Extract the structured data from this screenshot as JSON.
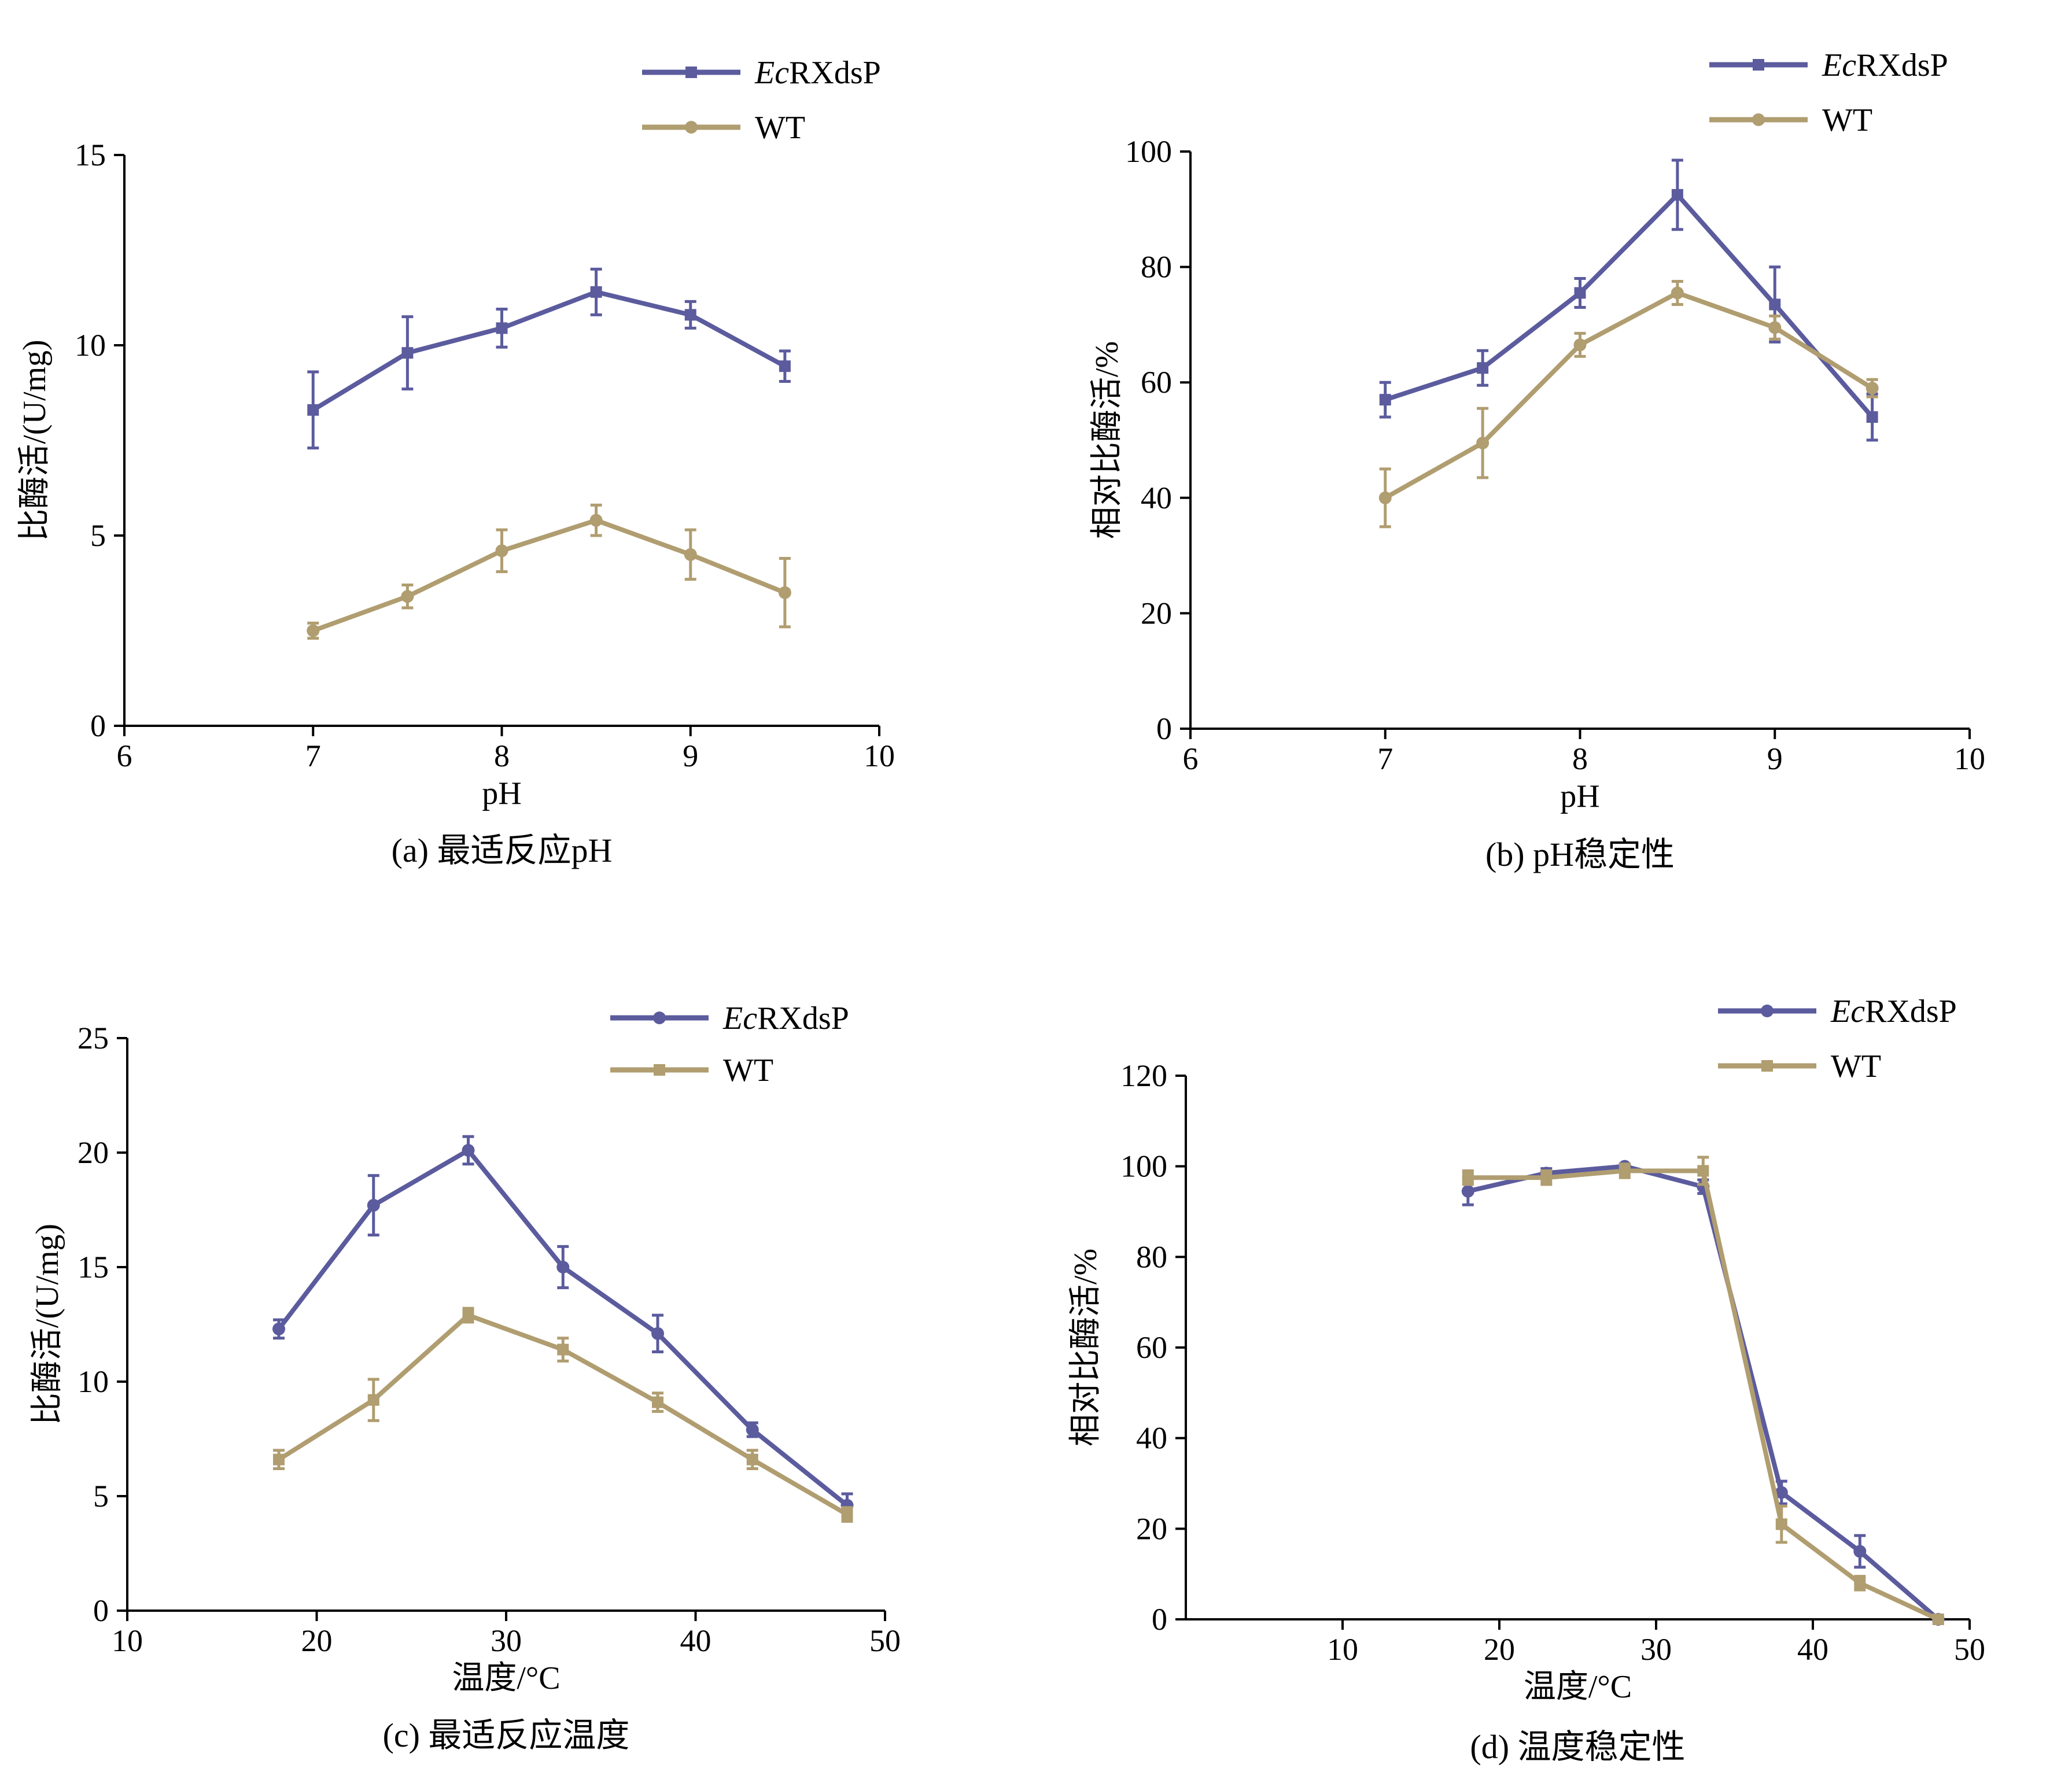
{
  "colors": {
    "EcRXdsP": "#5b5b9e",
    "WT": "#b09d70"
  },
  "chart_data": [
    {
      "type": "line",
      "caption": "(a) 最适反应pH",
      "xlabel": "pH",
      "ylabel": "比酶活/(U/mg)",
      "xlim": [
        6,
        10
      ],
      "ylim": [
        0,
        15
      ],
      "xticks": [
        6,
        7,
        8,
        9,
        10
      ],
      "yticks": [
        0,
        5,
        10,
        15
      ],
      "legend": "top-right",
      "grid": false,
      "series": [
        {
          "name_italic": "Ec",
          "name_rest": "RXdsP",
          "color": "#5b5b9e",
          "marker": "square",
          "x": [
            7,
            7.5,
            8,
            8.5,
            9,
            9.5
          ],
          "y": [
            8.3,
            9.8,
            10.45,
            11.4,
            10.8,
            9.45
          ],
          "err": [
            1.0,
            0.95,
            0.5,
            0.6,
            0.35,
            0.4
          ]
        },
        {
          "name_italic": "",
          "name_rest": "WT",
          "color": "#b09d70",
          "marker": "circle",
          "x": [
            7,
            7.5,
            8,
            8.5,
            9,
            9.5
          ],
          "y": [
            2.5,
            3.4,
            4.6,
            5.4,
            4.5,
            3.5
          ],
          "err": [
            0.2,
            0.3,
            0.55,
            0.4,
            0.65,
            0.9
          ]
        }
      ]
    },
    {
      "type": "line",
      "caption": "(b) pH稳定性",
      "xlabel": "pH",
      "ylabel": "相对比酶活/%",
      "xlim": [
        6,
        10
      ],
      "ylim": [
        0,
        100
      ],
      "xticks": [
        6,
        7,
        8,
        9,
        10
      ],
      "yticks": [
        0,
        20,
        40,
        60,
        80,
        100
      ],
      "legend": "top-right",
      "grid": false,
      "series": [
        {
          "name_italic": "Ec",
          "name_rest": "RXdsP",
          "color": "#5b5b9e",
          "marker": "square",
          "x": [
            7,
            7.5,
            8,
            8.5,
            9,
            9.5
          ],
          "y": [
            57,
            62.5,
            75.5,
            92.5,
            73.5,
            54
          ],
          "err": [
            3,
            3,
            2.5,
            6,
            6.5,
            4
          ]
        },
        {
          "name_italic": "",
          "name_rest": "WT",
          "color": "#b09d70",
          "marker": "circle",
          "x": [
            7,
            7.5,
            8,
            8.5,
            9,
            9.5
          ],
          "y": [
            40,
            49.5,
            66.5,
            75.5,
            69.5,
            59
          ],
          "err": [
            5,
            6,
            2,
            2,
            2,
            1.5
          ]
        }
      ]
    },
    {
      "type": "line",
      "caption": "(c) 最适反应温度",
      "xlabel": "温度/°C",
      "ylabel": "比酶活/(U/mg)",
      "xlim": [
        10,
        50
      ],
      "ylim": [
        0,
        25
      ],
      "xticks": [
        10,
        20,
        30,
        40,
        50
      ],
      "yticks": [
        0,
        5,
        10,
        15,
        20,
        25
      ],
      "legend": "top-right",
      "grid": false,
      "series": [
        {
          "name_italic": "Ec",
          "name_rest": "RXdsP",
          "color": "#5b5b9e",
          "marker": "circle",
          "x": [
            18,
            23,
            28,
            33,
            38,
            43,
            48
          ],
          "y": [
            12.3,
            17.7,
            20.1,
            15.0,
            12.1,
            7.9,
            4.6
          ],
          "err": [
            0.4,
            1.3,
            0.6,
            0.9,
            0.8,
            0.3,
            0.5
          ]
        },
        {
          "name_italic": "",
          "name_rest": "WT",
          "color": "#b09d70",
          "marker": "square",
          "x": [
            18,
            23,
            28,
            33,
            38,
            43,
            48
          ],
          "y": [
            6.6,
            9.2,
            12.9,
            11.4,
            9.1,
            6.6,
            4.2
          ],
          "err": [
            0.4,
            0.9,
            0.3,
            0.5,
            0.4,
            0.4,
            0.3
          ]
        }
      ]
    },
    {
      "type": "line",
      "caption": "(d) 温度稳定性",
      "xlabel": "温度/°C",
      "ylabel": "相对比酶活/%",
      "xlim": [
        0,
        50
      ],
      "ylim": [
        0,
        120
      ],
      "xticks": [
        10,
        20,
        30,
        40,
        50
      ],
      "yticks": [
        0,
        20,
        40,
        60,
        80,
        100,
        120
      ],
      "legend": "top-right",
      "grid": false,
      "series": [
        {
          "name_italic": "Ec",
          "name_rest": "RXdsP",
          "color": "#5b5b9e",
          "marker": "circle",
          "x": [
            18,
            23,
            28,
            33,
            38,
            43,
            48
          ],
          "y": [
            94.5,
            98.5,
            100,
            95.5,
            28,
            15,
            0
          ],
          "err": [
            3,
            1,
            0.5,
            1.5,
            2.5,
            3.5,
            0.3
          ]
        },
        {
          "name_italic": "",
          "name_rest": "WT",
          "color": "#b09d70",
          "marker": "square",
          "x": [
            18,
            23,
            28,
            33,
            38,
            43,
            48
          ],
          "y": [
            97.5,
            97.5,
            99,
            99,
            21,
            8,
            0
          ],
          "err": [
            1.5,
            1.5,
            1.5,
            3,
            4,
            1.5,
            0.3
          ]
        }
      ]
    }
  ]
}
